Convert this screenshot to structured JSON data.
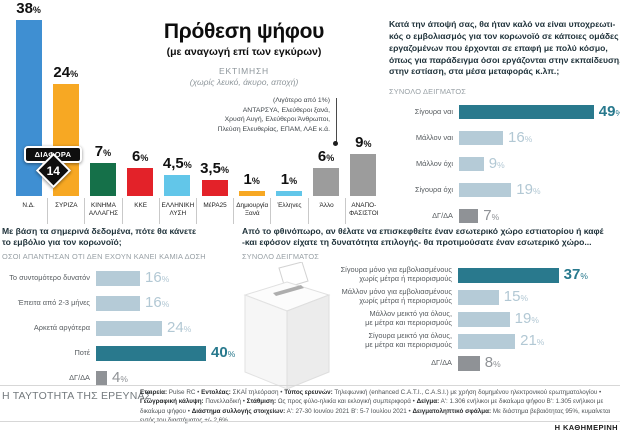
{
  "colors": {
    "dark_teal": "#29798d",
    "light_blue_grey": "#b5cbd7",
    "grey": "#8f9296",
    "nd_blue": "#3f8fd2",
    "syriza_orange": "#f7a823",
    "kinal_green": "#157049",
    "kke_red": "#e32229",
    "ellysi_lightblue": "#62c6e9"
  },
  "chart_data": [
    {
      "type": "bar",
      "title": "Πρόθεση ψήφου",
      "subtitle": "(με αναγωγή επί των εγκύρων)",
      "estimate_label": "ΕΚΤΙΜΗΣΗ",
      "estimate_note": "(χωρίς λευκό, άκυρο, αποχή)",
      "categories": [
        "Ν.Δ.",
        "ΣΥΡΙΖΑ",
        "ΚΙΝΗΜΑ\nΑΛΛΑΓΗΣ",
        "ΚΚΕ",
        "ΕΛΛΗΝΙΚΗ\nΛΥΣΗ",
        "ΜέΡΑ25",
        "Δημιουργία\nΞανά",
        "Έλληνες",
        "Άλλο",
        "ΑΝΑΠΟ-\nΦΑΣΙΣΤΟΙ"
      ],
      "values": [
        38,
        24,
        7,
        6,
        4.5,
        3.5,
        1,
        1,
        6,
        9
      ],
      "display": [
        "38",
        "24",
        "7",
        "6",
        "4,5",
        "3,5",
        "1",
        "1",
        "6",
        "9"
      ],
      "colors": [
        "#3f8fd2",
        "#f7a823",
        "#157049",
        "#e32229",
        "#62c6e9",
        "#e32229",
        "#f7a823",
        "#62c6e9",
        "#9c9c9c",
        "#9c9c9c"
      ],
      "diff": {
        "label": "ΔΙΑΦΟΡΑ",
        "value": "14"
      },
      "minor_note": "(Λιγότερο από 1%)\nΑΝΤΑΡΣΥΑ, Ελεύθεροι ξανά,\nΧρυσή Αυγή, Ελεύθεροι Άνθρωποι,\nΠλεύση Ελευθερίας, ΕΠΑΜ, ΛΑΕ κ.ά.",
      "ylim": [
        0,
        40
      ]
    },
    {
      "type": "hbar",
      "question": "Κατά την άποψή σας, θα ήταν καλό να είναι υποχρεωτι-\nκός ο εμβολιασμός για τον κορωνοϊό σε κάποιες ομάδες\nεργαζομένων που έρχονται σε επαφή με πολύ κόσμο,\nόπως για παράδειγμα όσοι εργάζονται στην εκπαίδευση,\nστην εστίαση, στα μέσα μεταφοράς κ.λπ.;",
      "sample_label": "ΣΥΝΟΛΟ ΔΕΙΓΜΑΤΟΣ",
      "categories": [
        "Σίγουρα ναι",
        "Μάλλον ναι",
        "Μάλλον όχι",
        "Σίγουρα όχι",
        "ΔΓ/ΔΑ"
      ],
      "values": [
        49,
        16,
        9,
        19,
        7
      ],
      "styles": [
        "dark",
        "light",
        "light",
        "light",
        "grey"
      ]
    },
    {
      "type": "hbar",
      "question": "Με βάση τα σημερινά δεδομένα, πότε θα κάνετε\nτο εμβόλιο για τον κορωνοϊό;",
      "sample_label": "ΟΣΟΙ ΑΠΑΝΤΗΣΑΝ ΟΤΙ ΔΕΝ ΕΧΟΥΝ ΚΑΝΕΙ ΚΑΜΙΑ ΔΟΣΗ",
      "categories": [
        "Το συντομότερο δυνατόν",
        "Έπειτα από 2-3 μήνες",
        "Αρκετά αργότερα",
        "Ποτέ",
        "ΔΓ/ΔΑ"
      ],
      "values": [
        16,
        16,
        24,
        40,
        4
      ],
      "styles": [
        "light",
        "light",
        "light",
        "dark",
        "grey"
      ]
    },
    {
      "type": "hbar",
      "question": "Από το φθινόπωρο, αν θέλατε να επισκεφθείτε έναν εσωτερικό χώρο εστιατορίου ή καφέ\n-και εφόσον είχατε τη δυνατότητα επιλογής- θα προτιμούσατε έναν εσωτερικό χώρο...",
      "sample_label": "ΣΥΝΟΛΟ ΔΕΙΓΜΑΤΟΣ",
      "categories": [
        "Σίγουρα μόνο για εμβολιασμένους\nχωρίς μέτρα ή περιορισμούς",
        "Μάλλον μόνο για εμβολιασμένους\nχωρίς μέτρα ή περιορισμούς",
        "Μάλλον μεικτό για όλους,\nμε μέτρα και περιορισμούς",
        "Σίγουρα μεικτό για όλους,\nμε μέτρα και περιορισμούς",
        "ΔΓ/ΔΑ"
      ],
      "values": [
        37,
        15,
        19,
        21,
        8
      ],
      "styles": [
        "dark",
        "light",
        "light",
        "light",
        "grey"
      ]
    }
  ],
  "footer": {
    "heading": "Η ΤΑΥΤΟΤΗΤΑ ΤΗΣ ΕΡΕΥΝΑΣ",
    "segments": [
      {
        "label": "Εταιρεία:",
        "text": " Pulse RC • "
      },
      {
        "label": "Εντολέας:",
        "text": " ΣΚΑΪ τηλεόραση • "
      },
      {
        "label": "Τύπος ερευνών:",
        "text": " Τηλεφωνική (enhanced C.A.T.I., C.A.S.I.) με χρήση δομημένου ηλεκτρονικού ερωτηματολογίου • "
      },
      {
        "label": "Γεωγραφική κάλυψη:",
        "text": " Πανελλαδική • "
      },
      {
        "label": "Στάθμιση:",
        "text": " Ως προς φύλο-ηλικία και εκλογική συμπεριφορά • "
      },
      {
        "label": "Δείγμα:",
        "text": " Α': 1.306 ενήλικοι με δικαίωμα ψήφου Β': 1.305 ενήλικοι με δικαίωμα ψήφου • "
      },
      {
        "label": "Διάστημα συλλογής στοιχείων:",
        "text": " Α': 27-30 Ιουνίου 2021 Β': 5-7 Ιουλίου 2021 • "
      },
      {
        "label": "Δειγματοληπτικό σφάλμα:",
        "text": " Με διάστημα βεβαιότητας 95%, κυμαίνεται εντός του διαστήματος +/- 2,6%"
      }
    ],
    "brand": "Η ΚΑΘΗΜΕΡΙΝΗ"
  }
}
